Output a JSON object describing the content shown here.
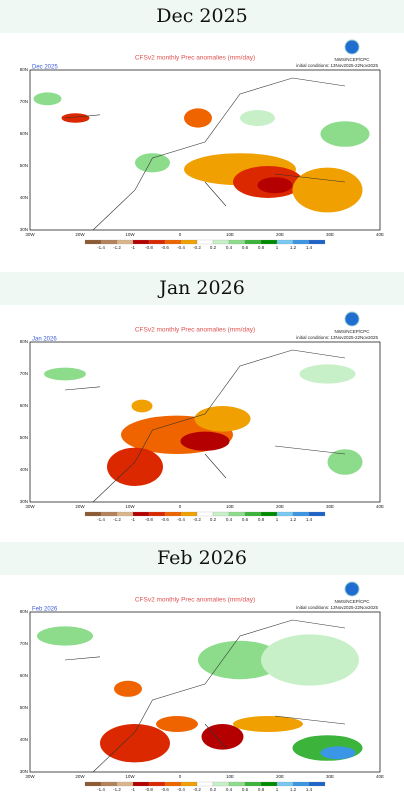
{
  "panels": [
    {
      "title": "Dec 2025",
      "label": "Dec 2025"
    },
    {
      "title": "Jan 2026",
      "label": "Jan 2026"
    },
    {
      "title": "Feb 2026",
      "label": "Feb 2026"
    }
  ],
  "header": "CFSv2 monthly Prec anomalies (mm/day)",
  "source": "NWS/NCEP/CPC",
  "conditions": "initial conditions: 13Nov2025-22Nov2025",
  "lat_labels": [
    "80N",
    "70N",
    "60N",
    "50N",
    "40N",
    "30N"
  ],
  "lon_labels": [
    "30W",
    "20W",
    "10W",
    "0",
    "10E",
    "20E",
    "30E",
    "40E"
  ],
  "colorbar": [
    -1.4,
    -1.2,
    -1,
    -0.8,
    -0.6,
    -0.4,
    -0.2,
    0.2,
    0.4,
    0.6,
    0.8,
    1,
    1.2,
    1.4
  ]
}
